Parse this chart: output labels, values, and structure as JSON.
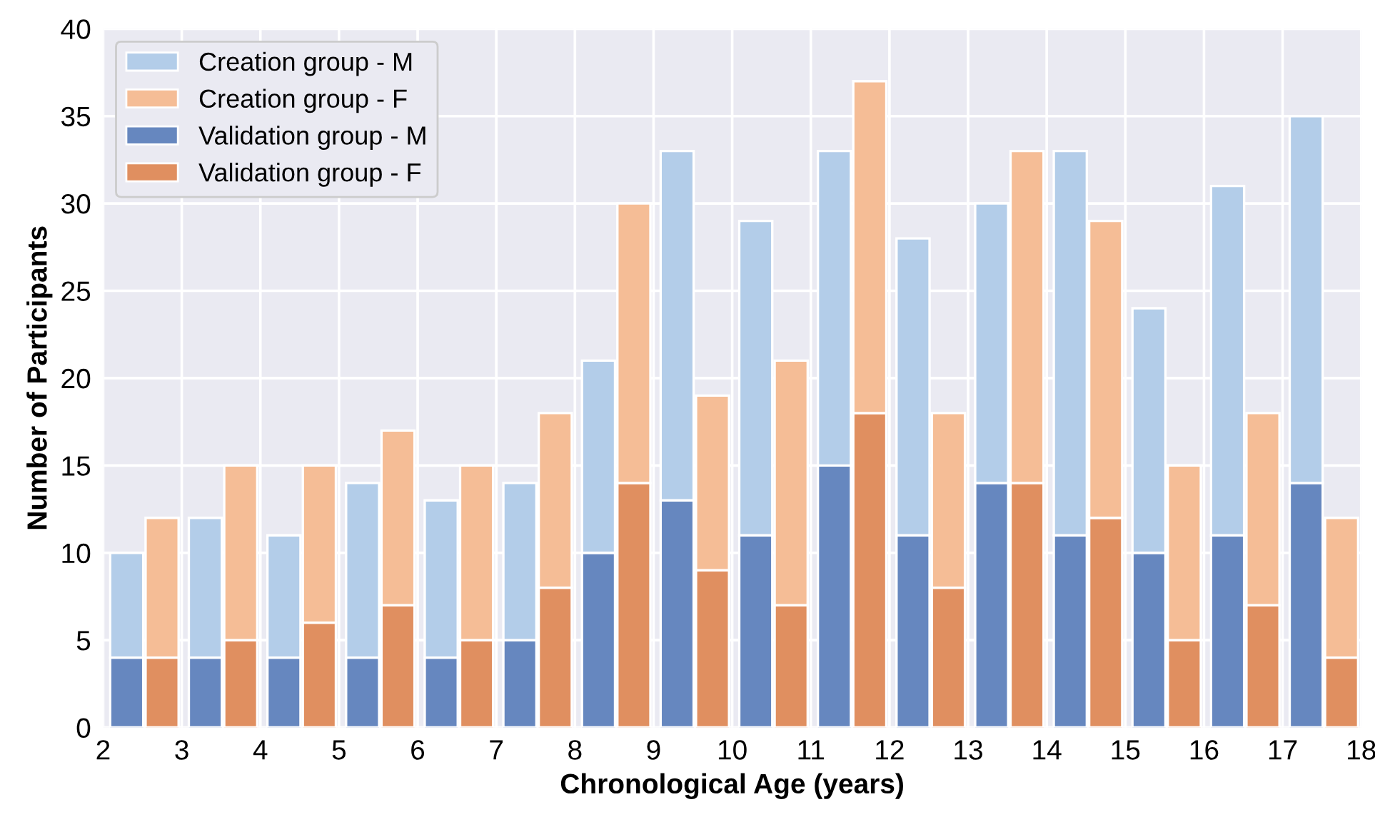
{
  "chart_data": {
    "type": "bar",
    "stacked": true,
    "xlabel": "Chronological Age (years)",
    "ylabel": "Number of Participants",
    "xlim": [
      2,
      18
    ],
    "xticks": [
      2,
      3,
      4,
      5,
      6,
      7,
      8,
      9,
      10,
      11,
      12,
      13,
      14,
      15,
      16,
      17,
      18
    ],
    "ylim": [
      0,
      40
    ],
    "yticks": [
      0,
      5,
      10,
      15,
      20,
      25,
      30,
      35,
      40
    ],
    "grid": true,
    "legend": "top left",
    "x": [
      2.3,
      2.75,
      3.3,
      3.75,
      4.3,
      4.75,
      5.3,
      5.75,
      6.3,
      6.75,
      7.3,
      7.75,
      8.3,
      8.75,
      9.3,
      9.75,
      10.3,
      10.75,
      11.3,
      11.75,
      12.3,
      12.75,
      13.3,
      13.75,
      14.3,
      14.75,
      15.3,
      15.75,
      16.3,
      16.75,
      17.3,
      17.75
    ],
    "series": [
      {
        "name": "Validation group - F",
        "color": "#e08f60",
        "values": [
          null,
          4,
          null,
          5,
          null,
          6,
          null,
          7,
          null,
          5,
          null,
          8,
          null,
          14,
          null,
          9,
          null,
          7,
          null,
          18,
          null,
          8,
          null,
          14,
          null,
          12,
          null,
          5,
          null,
          7,
          null,
          4
        ]
      },
      {
        "name": "Validation group - M",
        "color": "#6687bf",
        "values": [
          4,
          null,
          4,
          null,
          4,
          null,
          4,
          null,
          4,
          null,
          5,
          null,
          10,
          null,
          13,
          null,
          11,
          null,
          15,
          null,
          11,
          null,
          14,
          null,
          11,
          null,
          10,
          null,
          11,
          null,
          14,
          null
        ]
      },
      {
        "name": "Creation group - F",
        "color": "#f5bd96",
        "values": [
          null,
          8,
          null,
          10,
          null,
          9,
          null,
          10,
          null,
          10,
          null,
          10,
          null,
          16,
          null,
          10,
          null,
          14,
          null,
          19,
          null,
          10,
          null,
          19,
          null,
          17,
          null,
          10,
          null,
          11,
          null,
          8
        ]
      },
      {
        "name": "Creation group - M",
        "color": "#b3cde9",
        "values": [
          6,
          null,
          8,
          null,
          7,
          null,
          10,
          null,
          9,
          null,
          9,
          null,
          11,
          null,
          20,
          null,
          18,
          null,
          18,
          null,
          17,
          null,
          16,
          null,
          22,
          null,
          14,
          null,
          20,
          null,
          21,
          null
        ]
      }
    ]
  }
}
